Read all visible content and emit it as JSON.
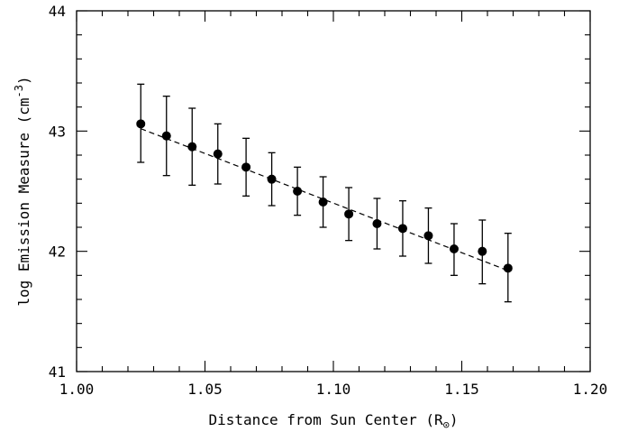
{
  "chart_data": {
    "type": "scatter",
    "xlabel": "Distance from Sun Center (R",
    "xlabel_sub": "⊙",
    "xlabel_close": ")",
    "ylabel": "log Emission Measure (cm",
    "ylabel_sup": "-3",
    "ylabel_close": ")",
    "xlim": [
      1.0,
      1.2
    ],
    "ylim": [
      41,
      44
    ],
    "xticks": [
      1.0,
      1.05,
      1.1,
      1.15,
      1.2
    ],
    "xtick_labels": [
      "1.00",
      "1.05",
      "1.10",
      "1.15",
      "1.20"
    ],
    "yticks": [
      41,
      42,
      43,
      44
    ],
    "ytick_labels": [
      "41",
      "42",
      "43",
      "44"
    ],
    "x_minor_step": 0.01,
    "y_minor_step": 0.2,
    "grid": false,
    "series": [
      {
        "x": [
          1.025,
          1.035,
          1.045,
          1.055,
          1.066,
          1.076,
          1.086,
          1.096,
          1.106,
          1.117,
          1.127,
          1.137,
          1.147,
          1.158,
          1.168
        ],
        "y": [
          43.06,
          42.96,
          42.87,
          42.81,
          42.7,
          42.6,
          42.5,
          42.41,
          42.31,
          42.23,
          42.19,
          42.13,
          42.02,
          42.0,
          41.86
        ],
        "yerr_low": [
          42.74,
          42.63,
          42.55,
          42.56,
          42.46,
          42.38,
          42.3,
          42.2,
          42.09,
          42.02,
          41.96,
          41.9,
          41.8,
          41.73,
          41.58
        ],
        "yerr_high": [
          43.39,
          43.29,
          43.19,
          43.06,
          42.94,
          42.82,
          42.7,
          42.62,
          42.53,
          42.44,
          42.42,
          42.36,
          42.23,
          42.26,
          42.15
        ]
      }
    ],
    "fit_line": {
      "x": [
        1.025,
        1.168
      ],
      "y": [
        43.02,
        41.84
      ],
      "style": "dashed"
    }
  }
}
